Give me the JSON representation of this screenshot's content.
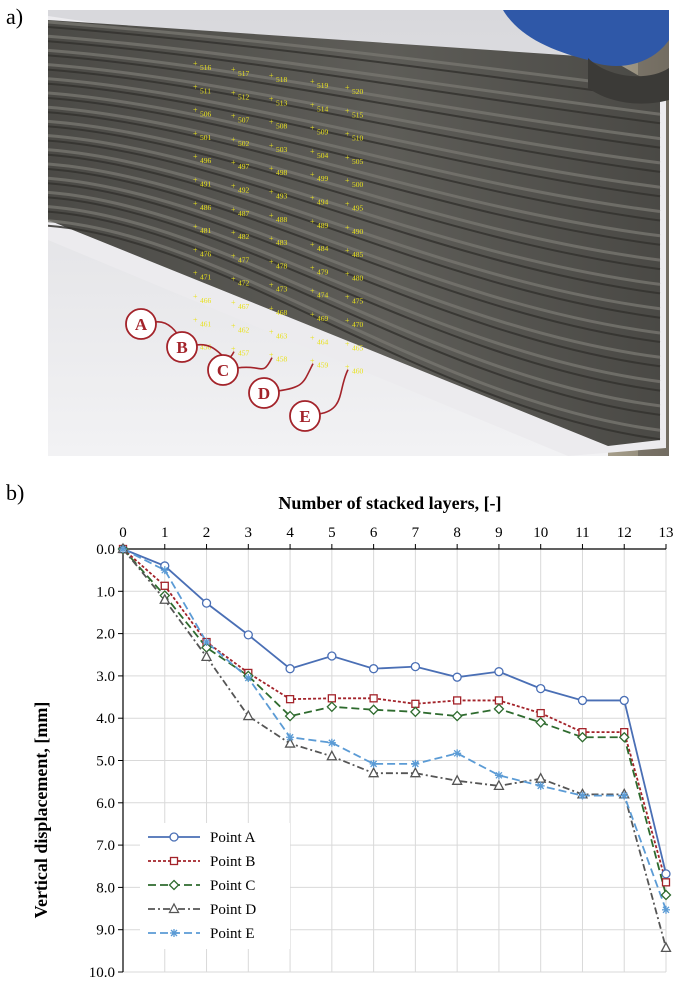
{
  "panel_labels": {
    "a": "a)",
    "b": "b)"
  },
  "photo": {
    "grid_rows": [
      [
        "516",
        "517",
        "518",
        "519",
        "520"
      ],
      [
        "511",
        "512",
        "513",
        "514",
        "515"
      ],
      [
        "506",
        "507",
        "508",
        "509",
        "510"
      ],
      [
        "501",
        "502",
        "503",
        "504",
        "505"
      ],
      [
        "496",
        "497",
        "498",
        "499",
        "500"
      ],
      [
        "491",
        "492",
        "493",
        "494",
        "495"
      ],
      [
        "486",
        "487",
        "488",
        "489",
        "490"
      ],
      [
        "481",
        "482",
        "483",
        "484",
        "485"
      ],
      [
        "476",
        "477",
        "478",
        "479",
        "480"
      ],
      [
        "471",
        "472",
        "473",
        "474",
        "475"
      ],
      [
        "466",
        "467",
        "468",
        "469",
        "470"
      ],
      [
        "461",
        "462",
        "463",
        "464",
        "465"
      ],
      [
        "456",
        "457",
        "458",
        "459",
        "460"
      ]
    ],
    "callouts": [
      "A",
      "B",
      "C",
      "D",
      "E"
    ],
    "colors": {
      "concrete": "#5b5a55",
      "grid_text": "#e9e21c",
      "callout": "#a3232a",
      "nozzle": "#2f58a8",
      "floor": "#e6e6e9"
    }
  },
  "chart_data": {
    "type": "line",
    "xlabel": "Number of stacked layers, [-]",
    "ylabel": "Vertical displacement, [mm]",
    "x": [
      0,
      1,
      2,
      3,
      4,
      5,
      6,
      7,
      8,
      9,
      10,
      11,
      12,
      13
    ],
    "x_ticks": [
      "0",
      "1",
      "2",
      "3",
      "4",
      "5",
      "6",
      "7",
      "8",
      "9",
      "10",
      "11",
      "12",
      "13"
    ],
    "y_ticks": [
      "0.0",
      "1.0",
      "2.0",
      "3.0",
      "4.0",
      "5.0",
      "6.0",
      "7.0",
      "8.0",
      "9.0",
      "10.0"
    ],
    "xlim": [
      0,
      13
    ],
    "ylim": [
      0,
      10
    ],
    "y_inverted": true,
    "grid": true,
    "legend_position": "bottom-left",
    "series": [
      {
        "name": "Point A",
        "color": "#4a6fb5",
        "marker": "circle",
        "dash": "solid",
        "values": [
          0,
          0.4,
          1.28,
          2.03,
          2.83,
          2.53,
          2.83,
          2.78,
          3.03,
          2.9,
          3.3,
          3.58,
          3.58,
          7.68
        ]
      },
      {
        "name": "Point B",
        "color": "#a3232a",
        "marker": "square",
        "dash": "dotted",
        "values": [
          0,
          0.87,
          2.2,
          2.93,
          3.55,
          3.53,
          3.53,
          3.66,
          3.58,
          3.58,
          3.88,
          4.33,
          4.33,
          7.88
        ]
      },
      {
        "name": "Point C",
        "color": "#2e6b2e",
        "marker": "diamond",
        "dash": "dashed",
        "values": [
          0,
          1.1,
          2.33,
          3.0,
          3.95,
          3.73,
          3.8,
          3.85,
          3.95,
          3.78,
          4.1,
          4.45,
          4.45,
          8.18
        ]
      },
      {
        "name": "Point D",
        "color": "#555555",
        "marker": "triangle",
        "dash": "dashdot",
        "values": [
          0,
          1.2,
          2.55,
          3.95,
          4.6,
          4.9,
          5.3,
          5.3,
          5.48,
          5.6,
          5.43,
          5.8,
          5.8,
          9.43
        ]
      },
      {
        "name": "Point E",
        "color": "#5b9bd5",
        "marker": "star",
        "dash": "dashed",
        "values": [
          0,
          0.5,
          2.2,
          3.05,
          4.45,
          4.58,
          5.08,
          5.08,
          4.83,
          5.35,
          5.6,
          5.83,
          5.83,
          8.53
        ]
      }
    ]
  }
}
